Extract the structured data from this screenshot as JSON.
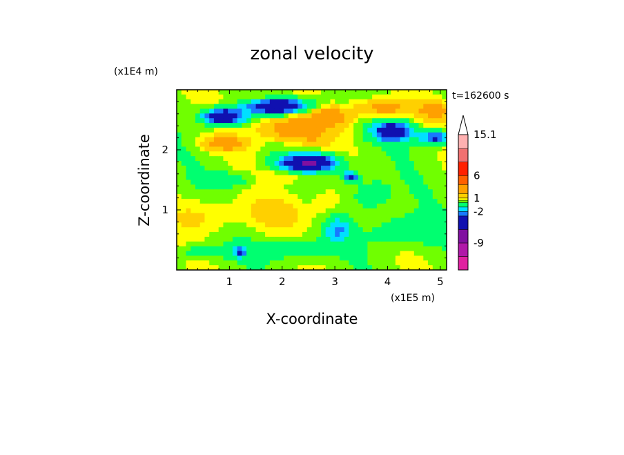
{
  "chart_data": {
    "type": "heatmap",
    "title": "zonal velocity",
    "xlabel": "X-coordinate",
    "ylabel": "Z-coordinate",
    "x_scale_label": "(x1E5 m)",
    "y_scale_label": "(x1E4 m)",
    "time_label": "t=162600 s",
    "xlim": [
      0,
      5.12
    ],
    "ylim": [
      0,
      3.0
    ],
    "x_ticks": [
      "1",
      "2",
      "3",
      "4",
      "5"
    ],
    "x_tick_values": [
      1,
      2,
      3,
      4,
      5
    ],
    "y_ticks": [
      "1",
      "2"
    ],
    "y_tick_values": [
      1,
      2
    ],
    "grid": false,
    "colorbar": {
      "placement": "right",
      "extend": "max",
      "labels": [
        "15.1",
        "6",
        "1",
        "-2",
        "-9"
      ],
      "label_values": [
        15.1,
        6,
        1,
        -2,
        -9
      ],
      "levels": [
        {
          "min": -15,
          "max": -12,
          "color": "#e020a0"
        },
        {
          "min": -12,
          "max": -9,
          "color": "#b018a8"
        },
        {
          "min": -9,
          "max": -6,
          "color": "#8010a0"
        },
        {
          "min": -6,
          "max": -3,
          "color": "#1010b0"
        },
        {
          "min": -3,
          "max": -2,
          "color": "#1878ff"
        },
        {
          "min": -2,
          "max": -1,
          "color": "#00e0ff"
        },
        {
          "min": -1,
          "max": 0,
          "color": "#00ff70"
        },
        {
          "min": 0,
          "max": 0.5,
          "color": "#70ff00"
        },
        {
          "min": 0.5,
          "max": 1,
          "color": "#ffff00"
        },
        {
          "min": 1,
          "max": 2,
          "color": "#ffd000"
        },
        {
          "min": 2,
          "max": 4,
          "color": "#ffa000"
        },
        {
          "min": 4,
          "max": 6,
          "color": "#ff6000"
        },
        {
          "min": 6,
          "max": 9,
          "color": "#ff2000"
        },
        {
          "min": 9,
          "max": 12,
          "color": "#f07070"
        },
        {
          "min": 12,
          "max": 15.1,
          "color": "#ffb0b0"
        }
      ]
    }
  }
}
